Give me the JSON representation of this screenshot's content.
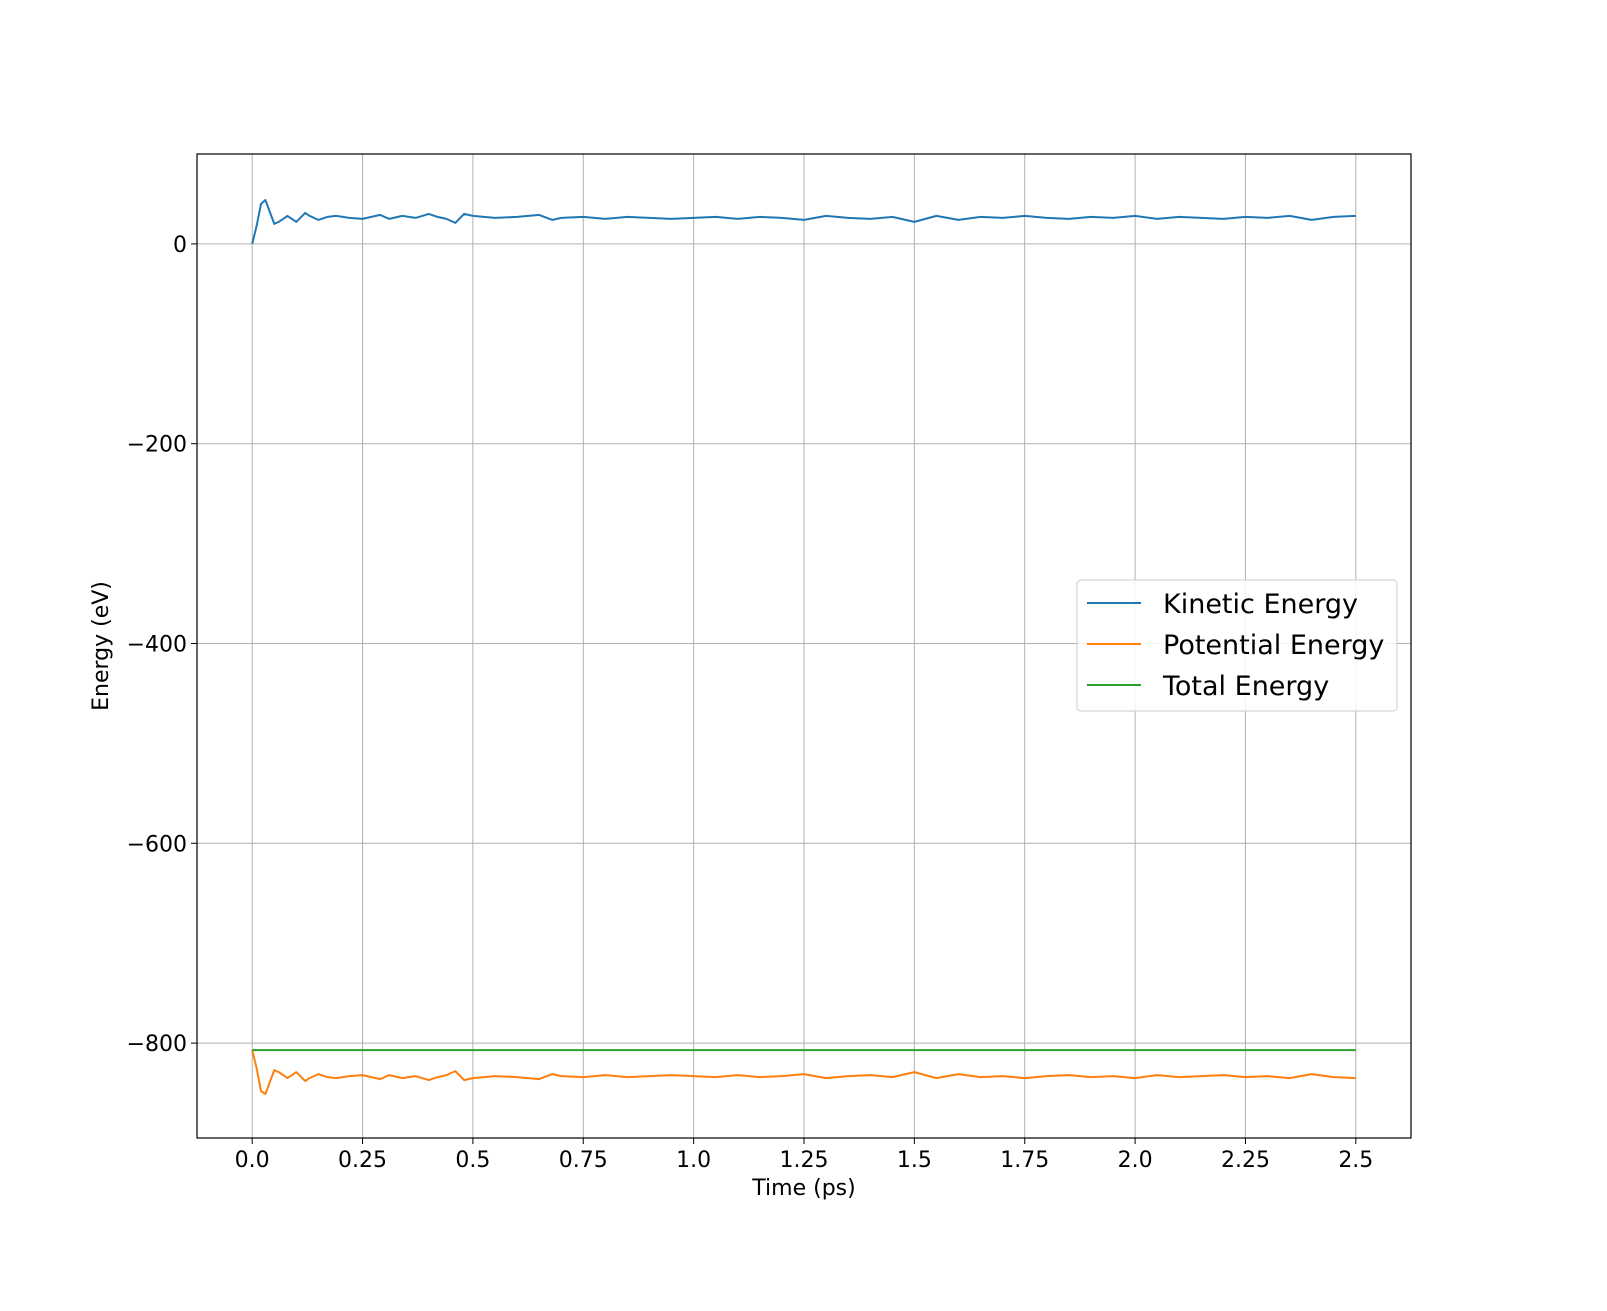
{
  "chart_data": {
    "type": "line",
    "title": "",
    "xlabel": "Time (ps)",
    "ylabel": "Energy (eV)",
    "xlim": [
      -0.125,
      2.625
    ],
    "ylim": [
      -895,
      90
    ],
    "xticks": [
      0.0,
      0.25,
      0.5,
      0.75,
      1.0,
      1.25,
      1.5,
      1.75,
      2.0,
      2.25,
      2.5
    ],
    "xtick_labels": [
      "0.0",
      "0.25",
      "0.5",
      "0.75",
      "1.0",
      "1.25",
      "1.5",
      "1.75",
      "2.0",
      "2.25",
      "2.5"
    ],
    "yticks": [
      0,
      -200,
      -400,
      -600,
      -800
    ],
    "ytick_labels": [
      "0",
      "−200",
      "−400",
      "−600",
      "−800"
    ],
    "grid": true,
    "legend_position": "center-right",
    "series": [
      {
        "name": "Kinetic Energy",
        "color": "#1f77b4",
        "x": [
          0,
          0.01,
          0.02,
          0.03,
          0.04,
          0.05,
          0.06,
          0.08,
          0.1,
          0.12,
          0.13,
          0.15,
          0.17,
          0.19,
          0.22,
          0.25,
          0.27,
          0.29,
          0.31,
          0.34,
          0.37,
          0.4,
          0.42,
          0.44,
          0.46,
          0.48,
          0.5,
          0.55,
          0.6,
          0.65,
          0.68,
          0.7,
          0.75,
          0.8,
          0.85,
          0.9,
          0.95,
          1.0,
          1.05,
          1.1,
          1.15,
          1.2,
          1.25,
          1.3,
          1.35,
          1.4,
          1.45,
          1.5,
          1.55,
          1.6,
          1.65,
          1.7,
          1.75,
          1.8,
          1.85,
          1.9,
          1.95,
          2.0,
          2.05,
          2.1,
          2.15,
          2.2,
          2.25,
          2.3,
          2.35,
          2.4,
          2.45,
          2.5
        ],
        "values": [
          0,
          18,
          40,
          44,
          32,
          20,
          22,
          28,
          22,
          31,
          28,
          24,
          27,
          28,
          26,
          25,
          27,
          29,
          25,
          28,
          26,
          30,
          27,
          25,
          21,
          30,
          28,
          26,
          27,
          29,
          24,
          26,
          27,
          25,
          27,
          26,
          25,
          26,
          27,
          25,
          27,
          26,
          24,
          28,
          26,
          25,
          27,
          22,
          28,
          24,
          27,
          26,
          28,
          26,
          25,
          27,
          26,
          28,
          25,
          27,
          26,
          25,
          27,
          26,
          28,
          24,
          27,
          28
        ]
      },
      {
        "name": "Potential Energy",
        "color": "#ff7f0e",
        "x": [
          0,
          0.01,
          0.02,
          0.03,
          0.04,
          0.05,
          0.06,
          0.08,
          0.1,
          0.12,
          0.13,
          0.15,
          0.17,
          0.19,
          0.22,
          0.25,
          0.27,
          0.29,
          0.31,
          0.34,
          0.37,
          0.4,
          0.42,
          0.44,
          0.46,
          0.48,
          0.5,
          0.55,
          0.6,
          0.65,
          0.68,
          0.7,
          0.75,
          0.8,
          0.85,
          0.9,
          0.95,
          1.0,
          1.05,
          1.1,
          1.15,
          1.2,
          1.25,
          1.3,
          1.35,
          1.4,
          1.45,
          1.5,
          1.55,
          1.6,
          1.65,
          1.7,
          1.75,
          1.8,
          1.85,
          1.9,
          1.95,
          2.0,
          2.05,
          2.1,
          2.15,
          2.2,
          2.25,
          2.3,
          2.35,
          2.4,
          2.45,
          2.5
        ],
        "values": [
          -807,
          -825,
          -848,
          -851,
          -839,
          -827,
          -829,
          -835,
          -829,
          -838,
          -835,
          -831,
          -834,
          -835,
          -833,
          -832,
          -834,
          -836,
          -832,
          -835,
          -833,
          -837,
          -834,
          -832,
          -828,
          -837,
          -835,
          -833,
          -834,
          -836,
          -831,
          -833,
          -834,
          -832,
          -834,
          -833,
          -832,
          -833,
          -834,
          -832,
          -834,
          -833,
          -831,
          -835,
          -833,
          -832,
          -834,
          -829,
          -835,
          -831,
          -834,
          -833,
          -835,
          -833,
          -832,
          -834,
          -833,
          -835,
          -832,
          -834,
          -833,
          -832,
          -834,
          -833,
          -835,
          -831,
          -834,
          -835
        ]
      },
      {
        "name": "Total Energy",
        "color": "#2ca02c",
        "x": [
          0,
          2.5
        ],
        "values": [
          -807,
          -807
        ]
      }
    ]
  }
}
